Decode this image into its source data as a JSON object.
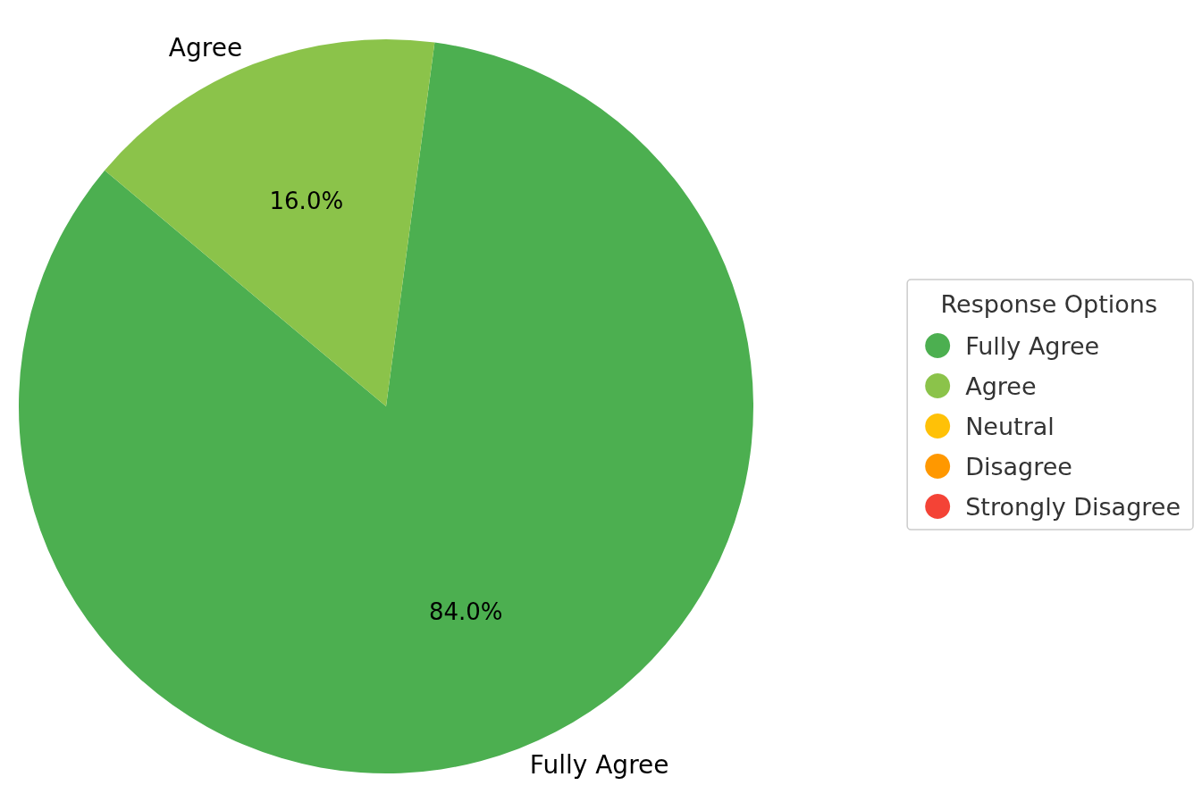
{
  "chart_data": {
    "type": "pie",
    "categories": [
      "Fully Agree",
      "Agree",
      "Neutral",
      "Disagree",
      "Strongly Disagree"
    ],
    "values": [
      84,
      16,
      0,
      0,
      0
    ],
    "value_labels": [
      "84.0%",
      "16.0%",
      null,
      null,
      null
    ],
    "colors": [
      "#4caf50",
      "#8bc34a",
      "#ffc107",
      "#ff9800",
      "#f44336"
    ],
    "legend": "right",
    "legend_title": "Response Options"
  }
}
